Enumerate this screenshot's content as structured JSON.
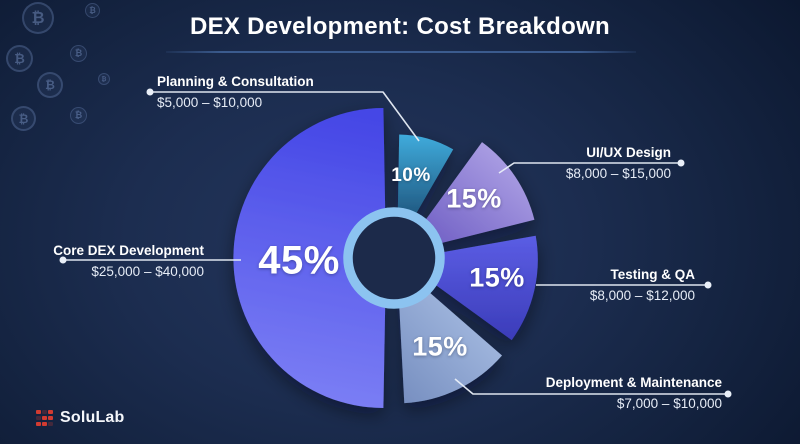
{
  "header": {
    "title": "DEX Development: Cost Breakdown"
  },
  "icons": {
    "bitcoin": "₿"
  },
  "footer": {
    "brand": "SoluLab"
  },
  "chart_data": {
    "type": "pie",
    "variant": "exploded-donut",
    "title": "DEX Development: Cost Breakdown",
    "legend_position": "callouts",
    "segments": [
      {
        "label": "Planning & Consultation",
        "cost_range": "$5,000 – $10,000",
        "pct": 10,
        "pct_label": "10%",
        "color_start": "#3fabdc",
        "color_end": "#153a5f"
      },
      {
        "label": "UI/UX Design",
        "cost_range": "$8,000 – $15,000",
        "pct": 15,
        "pct_label": "15%",
        "color_start": "#b0a4e6",
        "color_end": "#6d5cc3"
      },
      {
        "label": "Testing & QA",
        "cost_range": "$8,000 – $12,000",
        "pct": 15,
        "pct_label": "15%",
        "color_start": "#5b5de4",
        "color_end": "#3b3cb9"
      },
      {
        "label": "Deployment & Maintenance",
        "cost_range": "$7,000 – $10,000",
        "pct": 15,
        "pct_label": "15%",
        "color_start": "#b2c7ea",
        "color_end": "#7890c1"
      },
      {
        "label": "Core DEX Development",
        "cost_range": "$25,000 – $40,000",
        "pct": 45,
        "pct_label": "45%",
        "color_start": "#4547e6",
        "color_end": "#7d80f5"
      }
    ],
    "hole_color": "#1c2a4a",
    "ring_color": "#8cc3f0",
    "background_color": "#14233f"
  }
}
